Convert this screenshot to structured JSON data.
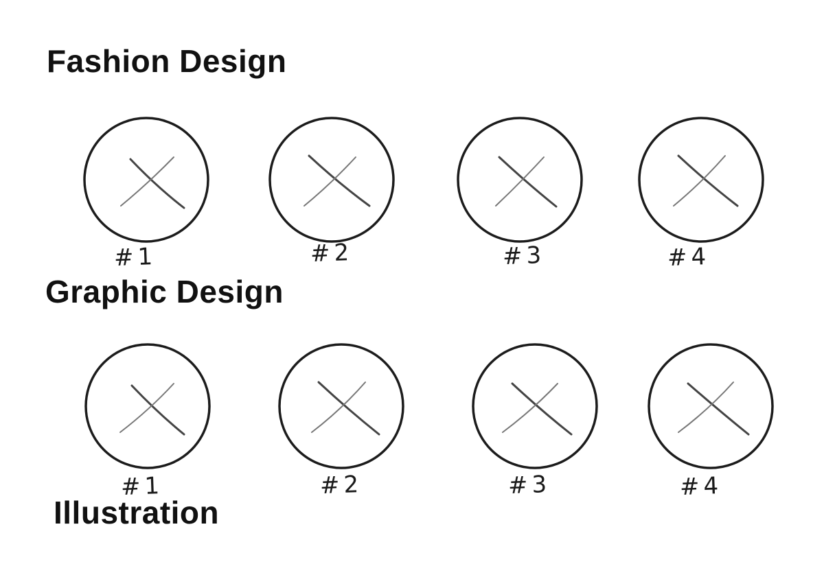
{
  "sections": [
    {
      "title": "Fashion Design",
      "slots": [
        {
          "label": "#1",
          "icon": "image-placeholder-x-icon"
        },
        {
          "label": "#2",
          "icon": "image-placeholder-x-icon"
        },
        {
          "label": "#3",
          "icon": "image-placeholder-x-icon"
        },
        {
          "label": "#4",
          "icon": "image-placeholder-x-icon"
        }
      ]
    },
    {
      "title": "Graphic Design",
      "slots": [
        {
          "label": "#1",
          "icon": "image-placeholder-x-icon"
        },
        {
          "label": "#2",
          "icon": "image-placeholder-x-icon"
        },
        {
          "label": "#3",
          "icon": "image-placeholder-x-icon"
        },
        {
          "label": "#4",
          "icon": "image-placeholder-x-icon"
        }
      ]
    },
    {
      "title": "Illustration",
      "slots": []
    }
  ],
  "colors": {
    "ink": "#111111",
    "circle_stroke": "#1c1c1c",
    "cross_stroke": "#555555"
  }
}
